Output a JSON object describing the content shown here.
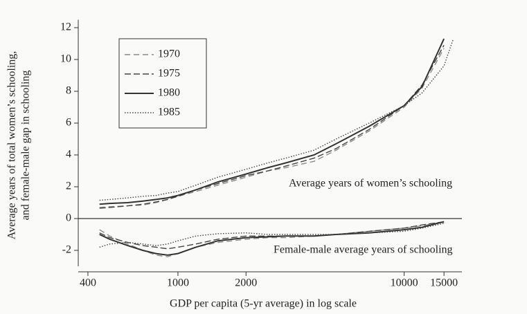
{
  "chart_data": {
    "type": "line",
    "xlabel": "GDP per capita (5-yr average) in log scale",
    "ylabel": [
      "Average years of total women’s schooling,",
      "and female-male gap in schooling"
    ],
    "annotations": [
      "Average years of women’s schooling",
      "Female-male average years of schooling"
    ],
    "x_log": true,
    "xlim": [
      350,
      18000
    ],
    "xticks": [
      400,
      1000,
      2000,
      10000,
      15000
    ],
    "ylim": [
      -3,
      12.5
    ],
    "yticks": [
      -2,
      0,
      2,
      4,
      6,
      8,
      10,
      12
    ],
    "hline": 0,
    "legend": "upper left",
    "x": [
      450,
      500,
      600,
      700,
      800,
      900,
      1000,
      1200,
      1500,
      2000,
      2500,
      3000,
      4000,
      5000,
      7000,
      10000,
      12000,
      15000,
      16500
    ],
    "series": [
      {
        "name": "1970",
        "color": "#8a8a8a",
        "line_style": "dashed",
        "values": [
          0.7,
          0.75,
          0.8,
          0.85,
          1.0,
          1.2,
          1.4,
          1.7,
          2.1,
          2.6,
          3.0,
          3.2,
          3.6,
          4.3,
          5.5,
          7.0,
          8.2,
          10.7,
          null
        ],
        "gap": [
          -0.7,
          -1.1,
          -1.6,
          -2.0,
          -2.3,
          -2.4,
          -2.2,
          -1.8,
          -1.5,
          -1.3,
          -1.2,
          -1.2,
          -1.1,
          -1.0,
          -0.8,
          -0.6,
          -0.45,
          -0.2,
          null
        ]
      },
      {
        "name": "1975",
        "color": "#444444",
        "line_style": "dashed",
        "values": [
          0.65,
          0.7,
          0.8,
          0.9,
          1.05,
          1.2,
          1.4,
          1.8,
          2.2,
          2.7,
          3.0,
          3.3,
          3.8,
          4.4,
          5.6,
          7.1,
          8.4,
          10.9,
          null
        ],
        "gap": [
          -0.9,
          -1.2,
          -1.5,
          -1.7,
          -1.8,
          -1.9,
          -1.8,
          -1.6,
          -1.3,
          -1.1,
          -1.1,
          -1.1,
          -1.1,
          -1.0,
          -0.8,
          -0.6,
          -0.4,
          -0.2,
          null
        ]
      },
      {
        "name": "1980",
        "color": "#333333",
        "line_style": "solid",
        "values": [
          0.9,
          0.95,
          1.0,
          1.1,
          1.2,
          1.3,
          1.45,
          1.8,
          2.3,
          2.8,
          3.2,
          3.5,
          4.0,
          4.7,
          5.8,
          7.1,
          8.3,
          11.3,
          null
        ],
        "gap": [
          -1.0,
          -1.3,
          -1.7,
          -2.0,
          -2.2,
          -2.3,
          -2.2,
          -1.8,
          -1.4,
          -1.2,
          -1.15,
          -1.1,
          -1.1,
          -1.0,
          -0.9,
          -0.7,
          -0.55,
          -0.2,
          null
        ]
      },
      {
        "name": "1985",
        "color": "#444444",
        "line_style": "dotted",
        "values": [
          1.15,
          1.2,
          1.3,
          1.4,
          1.45,
          1.6,
          1.7,
          2.1,
          2.6,
          3.1,
          3.5,
          3.8,
          4.3,
          5.0,
          6.0,
          7.1,
          7.9,
          9.6,
          11.3
        ],
        "gap": [
          -1.8,
          -1.6,
          -1.5,
          -1.6,
          -1.7,
          -1.6,
          -1.4,
          -1.1,
          -0.95,
          -0.9,
          -1.0,
          -1.0,
          -1.0,
          -1.0,
          -0.9,
          -0.8,
          -0.6,
          -0.3,
          null
        ]
      }
    ]
  }
}
